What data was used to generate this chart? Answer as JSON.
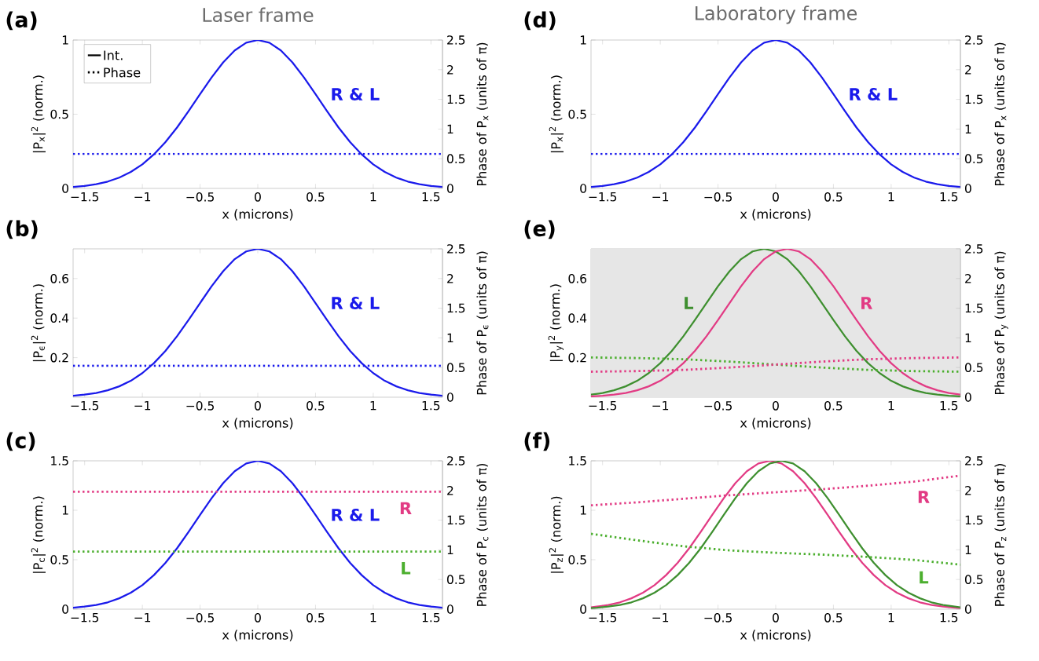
{
  "chart_data": [
    {
      "type": "line",
      "title": "(a)",
      "subtitle": "Laser frame",
      "xlabel": "x (microns)",
      "ylabel": "|P$_{x}$|$^{2}$ (norm.)",
      "y2label": "Phase of P$_{x}$ (units of π)",
      "x": [
        -1.6,
        -1.5,
        -1.4,
        -1.3,
        -1.2,
        -1.1,
        -1.0,
        -0.9,
        -0.8,
        -0.7,
        -0.6,
        -0.5,
        -0.4,
        -0.3,
        -0.2,
        -0.1,
        0,
        0.1,
        0.2,
        0.3,
        0.4,
        0.5,
        0.6,
        0.7,
        0.8,
        0.9,
        1.0,
        1.1,
        1.2,
        1.3,
        1.4,
        1.5,
        1.6
      ],
      "xlim": [
        -1.6,
        1.6
      ],
      "xticks": [
        -1.5,
        -1,
        -0.5,
        0,
        0.5,
        1,
        1.5
      ],
      "ylim": [
        0,
        1
      ],
      "yticks": [
        0,
        0.5,
        1
      ],
      "y2lim": [
        0,
        2.5
      ],
      "y2ticks": [
        0,
        0.5,
        1,
        1.5,
        2,
        2.5
      ],
      "annotations": [
        "Int.",
        "Phase"
      ],
      "series": [
        {
          "name": "R & L",
          "color": "#1a1aeb",
          "line_style": "solid",
          "values": [
            0.01,
            0.017,
            0.028,
            0.046,
            0.073,
            0.111,
            0.162,
            0.229,
            0.312,
            0.41,
            0.52,
            0.635,
            0.748,
            0.849,
            0.93,
            0.982,
            1,
            0.982,
            0.93,
            0.849,
            0.748,
            0.635,
            0.52,
            0.41,
            0.312,
            0.229,
            0.162,
            0.111,
            0.073,
            0.046,
            0.028,
            0.017,
            0.01
          ]
        },
        {
          "color": "#1a1aeb",
          "line_style": "dotted",
          "axis": "y2",
          "x": [
            -1.6,
            1.6
          ],
          "values": [
            0.58,
            0.58
          ]
        }
      ]
    },
    {
      "type": "line",
      "title": "(b)",
      "xlabel": "x (microns)",
      "ylabel": "|P$_{ϵ}$|$^{2}$ (norm.)",
      "y2label": "Phase of P$_{ϵ}$ (units of π)",
      "x": [
        -1.6,
        -1.5,
        -1.4,
        -1.3,
        -1.2,
        -1.1,
        -1.0,
        -0.9,
        -0.8,
        -0.7,
        -0.6,
        -0.5,
        -0.4,
        -0.3,
        -0.2,
        -0.1,
        0,
        0.1,
        0.2,
        0.3,
        0.4,
        0.5,
        0.6,
        0.7,
        0.8,
        0.9,
        1.0,
        1.1,
        1.2,
        1.3,
        1.4,
        1.5,
        1.6
      ],
      "xlim": [
        -1.6,
        1.6
      ],
      "xticks": [
        -1.5,
        -1,
        -0.5,
        0,
        0.5,
        1,
        1.5
      ],
      "ylim": [
        0,
        0.75
      ],
      "yticks": [
        0.2,
        0.4,
        0.6
      ],
      "y2lim": [
        0,
        2.5
      ],
      "y2ticks": [
        0,
        0.5,
        1,
        1.5,
        2,
        2.5
      ],
      "series": [
        {
          "name": "R & L",
          "color": "#1a1aeb",
          "line_style": "solid",
          "values": [
            0.007,
            0.013,
            0.021,
            0.035,
            0.055,
            0.083,
            0.122,
            0.172,
            0.234,
            0.308,
            0.39,
            0.476,
            0.561,
            0.637,
            0.698,
            0.737,
            0.75,
            0.737,
            0.698,
            0.637,
            0.561,
            0.476,
            0.39,
            0.308,
            0.234,
            0.172,
            0.122,
            0.083,
            0.055,
            0.035,
            0.021,
            0.013,
            0.007
          ]
        },
        {
          "color": "#1a1aeb",
          "line_style": "dotted",
          "axis": "y2",
          "x": [
            -1.6,
            1.6
          ],
          "values": [
            0.53,
            0.53
          ]
        }
      ]
    },
    {
      "type": "line",
      "title": "(c)",
      "xlabel": "x (microns)",
      "ylabel": "|P$_{c}$|$^{2}$ (norm.)",
      "y2label": "Phase of P$_{c}$ (units of π)",
      "x": [
        -1.6,
        -1.5,
        -1.4,
        -1.3,
        -1.2,
        -1.1,
        -1.0,
        -0.9,
        -0.8,
        -0.7,
        -0.6,
        -0.5,
        -0.4,
        -0.3,
        -0.2,
        -0.1,
        0,
        0.1,
        0.2,
        0.3,
        0.4,
        0.5,
        0.6,
        0.7,
        0.8,
        0.9,
        1.0,
        1.1,
        1.2,
        1.3,
        1.4,
        1.5,
        1.6
      ],
      "xlim": [
        -1.6,
        1.6
      ],
      "xticks": [
        -1.5,
        -1,
        -0.5,
        0,
        0.5,
        1,
        1.5
      ],
      "ylim": [
        0,
        1.5
      ],
      "yticks": [
        0,
        0.5,
        1,
        1.5
      ],
      "y2lim": [
        0,
        2.5
      ],
      "y2ticks": [
        0,
        0.5,
        1,
        1.5,
        2,
        2.5
      ],
      "series": [
        {
          "name": "R & L",
          "color": "#1a1aeb",
          "line_style": "solid",
          "values": [
            0.014,
            0.026,
            0.042,
            0.069,
            0.11,
            0.167,
            0.243,
            0.344,
            0.468,
            0.615,
            0.78,
            0.953,
            1.122,
            1.274,
            1.395,
            1.473,
            1.5,
            1.473,
            1.395,
            1.274,
            1.122,
            0.953,
            0.78,
            0.615,
            0.468,
            0.344,
            0.243,
            0.167,
            0.11,
            0.069,
            0.042,
            0.026,
            0.014
          ]
        },
        {
          "name": "R",
          "color": "#e23b84",
          "line_style": "dotted",
          "axis": "y2",
          "x": [
            -1.6,
            1.6
          ],
          "values": [
            1.98,
            1.98
          ]
        },
        {
          "name": "L",
          "color": "#4caf2f",
          "line_style": "dotted",
          "axis": "y2",
          "x": [
            -1.6,
            1.6
          ],
          "values": [
            0.97,
            0.97
          ]
        }
      ]
    },
    {
      "type": "line",
      "title": "(d)",
      "subtitle": "Laboratory frame",
      "xlabel": "x (microns)",
      "ylabel": "|P$_{x}$|$^{2}$ (norm.)",
      "y2label": "Phase of P$_{x}$ (units of π)",
      "x": [
        -1.6,
        -1.5,
        -1.4,
        -1.3,
        -1.2,
        -1.1,
        -1.0,
        -0.9,
        -0.8,
        -0.7,
        -0.6,
        -0.5,
        -0.4,
        -0.3,
        -0.2,
        -0.1,
        0,
        0.1,
        0.2,
        0.3,
        0.4,
        0.5,
        0.6,
        0.7,
        0.8,
        0.9,
        1.0,
        1.1,
        1.2,
        1.3,
        1.4,
        1.5,
        1.6
      ],
      "xlim": [
        -1.6,
        1.6
      ],
      "xticks": [
        -1.5,
        -1,
        -0.5,
        0,
        0.5,
        1,
        1.5
      ],
      "ylim": [
        0,
        1
      ],
      "yticks": [
        0,
        0.5,
        1
      ],
      "y2lim": [
        0,
        2.5
      ],
      "y2ticks": [
        0,
        0.5,
        1,
        1.5,
        2,
        2.5
      ],
      "series": [
        {
          "name": "R & L",
          "color": "#1a1aeb",
          "line_style": "solid",
          "values": [
            0.01,
            0.017,
            0.028,
            0.046,
            0.073,
            0.111,
            0.162,
            0.229,
            0.312,
            0.41,
            0.52,
            0.635,
            0.748,
            0.849,
            0.93,
            0.982,
            1,
            0.982,
            0.93,
            0.849,
            0.748,
            0.635,
            0.52,
            0.41,
            0.312,
            0.229,
            0.162,
            0.111,
            0.073,
            0.046,
            0.028,
            0.017,
            0.01
          ]
        },
        {
          "color": "#1a1aeb",
          "line_style": "dotted",
          "axis": "y2",
          "x": [
            -1.6,
            1.6
          ],
          "values": [
            0.58,
            0.58
          ]
        }
      ]
    },
    {
      "type": "line",
      "title": "(e)",
      "xlabel": "x (microns)",
      "ylabel": "|P$_{y}$|$^{2}$ (norm.)",
      "y2label": "Phase of P$_{y}$ (units of π)",
      "x": [
        -1.6,
        -1.5,
        -1.4,
        -1.3,
        -1.2,
        -1.1,
        -1.0,
        -0.9,
        -0.8,
        -0.7,
        -0.6,
        -0.5,
        -0.4,
        -0.3,
        -0.2,
        -0.1,
        0,
        0.1,
        0.2,
        0.3,
        0.4,
        0.5,
        0.6,
        0.7,
        0.8,
        0.9,
        1.0,
        1.1,
        1.2,
        1.3,
        1.4,
        1.5,
        1.6
      ],
      "xlim": [
        -1.6,
        1.6
      ],
      "xticks": [
        -1.5,
        -1,
        -0.5,
        0,
        0.5,
        1,
        1.5
      ],
      "ylim": [
        0,
        0.75
      ],
      "yticks": [
        0.2,
        0.4,
        0.6
      ],
      "y2lim": [
        0,
        2.5
      ],
      "y2ticks": [
        0,
        0.5,
        1,
        1.5,
        2,
        2.5
      ],
      "bands": [
        {
          "axis": "x",
          "from": -1.6,
          "to": 1.6,
          "color": "#e6e6e6"
        }
      ],
      "series": [
        {
          "name": "L",
          "color": "#3e8f2f",
          "line_style": "solid",
          "values": [
            0.013,
            0.021,
            0.035,
            0.055,
            0.083,
            0.122,
            0.172,
            0.234,
            0.308,
            0.39,
            0.476,
            0.561,
            0.637,
            0.698,
            0.737,
            0.75,
            0.737,
            0.698,
            0.637,
            0.561,
            0.476,
            0.39,
            0.308,
            0.234,
            0.172,
            0.122,
            0.083,
            0.055,
            0.035,
            0.021,
            0.013,
            0.007,
            0.004
          ]
        },
        {
          "name": "R",
          "color": "#e23b84",
          "line_style": "solid",
          "values": [
            0.004,
            0.007,
            0.013,
            0.021,
            0.035,
            0.055,
            0.083,
            0.122,
            0.172,
            0.234,
            0.308,
            0.39,
            0.476,
            0.561,
            0.637,
            0.698,
            0.737,
            0.75,
            0.737,
            0.698,
            0.637,
            0.561,
            0.476,
            0.39,
            0.308,
            0.234,
            0.172,
            0.122,
            0.083,
            0.055,
            0.035,
            0.021,
            0.013
          ]
        },
        {
          "color": "#4caf2f",
          "line_style": "dotted",
          "axis": "y2",
          "x": [
            -1.6,
            -1.2,
            -0.8,
            -0.4,
            0,
            0.4,
            0.8,
            1.2,
            1.6
          ],
          "values": [
            0.67,
            0.66,
            0.64,
            0.6,
            0.55,
            0.5,
            0.46,
            0.44,
            0.43
          ]
        },
        {
          "color": "#e23b84",
          "line_style": "dotted",
          "axis": "y2",
          "x": [
            -1.6,
            -1.2,
            -0.8,
            -0.4,
            0,
            0.4,
            0.8,
            1.2,
            1.6
          ],
          "values": [
            0.43,
            0.44,
            0.46,
            0.5,
            0.55,
            0.6,
            0.64,
            0.66,
            0.67
          ]
        }
      ]
    },
    {
      "type": "line",
      "title": "(f)",
      "xlabel": "x (microns)",
      "ylabel": "|P$_{z}$|$^{2}$ (norm.)",
      "y2label": "Phase of P$_{z}$ (units of π)",
      "xlim": [
        -1.6,
        1.6
      ],
      "xticks": [
        -1.5,
        -1,
        -0.5,
        0,
        0.5,
        1,
        1.5
      ],
      "ylim": [
        0,
        1.5
      ],
      "yticks": [
        0,
        0.5,
        1,
        1.5
      ],
      "y2lim": [
        0,
        2.5
      ],
      "y2ticks": [
        0,
        0.5,
        1,
        1.5,
        2,
        2.5
      ],
      "series": [
        {
          "color": "#e23b84",
          "line_style": "solid",
          "x": [
            -1.6,
            -1.55,
            -1.45,
            -1.35,
            -1.25,
            -1.15,
            -1.05,
            -0.95,
            -0.85,
            -0.75,
            -0.65,
            -0.55,
            -0.45,
            -0.35,
            -0.25,
            -0.15,
            -0.05,
            0.05,
            0.15,
            0.25,
            0.35,
            0.45,
            0.55,
            0.65,
            0.75,
            0.85,
            0.95,
            1.05,
            1.15,
            1.25,
            1.35,
            1.45,
            1.55,
            1.6
          ],
          "values": [
            0.019,
            0.026,
            0.042,
            0.069,
            0.11,
            0.167,
            0.243,
            0.344,
            0.468,
            0.615,
            0.78,
            0.953,
            1.122,
            1.274,
            1.395,
            1.473,
            1.5,
            1.473,
            1.395,
            1.274,
            1.122,
            0.953,
            0.78,
            0.615,
            0.468,
            0.344,
            0.243,
            0.167,
            0.11,
            0.069,
            0.042,
            0.026,
            0.014,
            0.011
          ]
        },
        {
          "color": "#3e8f2f",
          "line_style": "solid",
          "x": [
            -1.6,
            -1.55,
            -1.45,
            -1.35,
            -1.25,
            -1.15,
            -1.05,
            -0.95,
            -0.85,
            -0.75,
            -0.65,
            -0.55,
            -0.45,
            -0.35,
            -0.25,
            -0.15,
            -0.05,
            0.05,
            0.15,
            0.25,
            0.35,
            0.45,
            0.55,
            0.65,
            0.75,
            0.85,
            0.95,
            1.05,
            1.15,
            1.25,
            1.35,
            1.45,
            1.55,
            1.6
          ],
          "values": [
            0.011,
            0.014,
            0.026,
            0.042,
            0.069,
            0.11,
            0.167,
            0.243,
            0.344,
            0.468,
            0.615,
            0.78,
            0.953,
            1.122,
            1.274,
            1.395,
            1.473,
            1.5,
            1.473,
            1.395,
            1.274,
            1.122,
            0.953,
            0.78,
            0.615,
            0.468,
            0.344,
            0.243,
            0.167,
            0.11,
            0.069,
            0.042,
            0.026,
            0.019
          ]
        },
        {
          "name": "R",
          "color": "#e23b84",
          "line_style": "dotted",
          "axis": "y2",
          "x": [
            -1.6,
            -1.2,
            -0.8,
            -0.4,
            0,
            0.4,
            0.8,
            1.2,
            1.6
          ],
          "values": [
            1.75,
            1.8,
            1.86,
            1.92,
            1.97,
            2.02,
            2.08,
            2.15,
            2.25
          ]
        },
        {
          "name": "L",
          "color": "#4caf2f",
          "line_style": "dotted",
          "axis": "y2",
          "x": [
            -1.6,
            -1.2,
            -0.8,
            -0.4,
            0,
            0.4,
            0.8,
            1.2,
            1.6
          ],
          "values": [
            1.27,
            1.16,
            1.06,
            0.99,
            0.95,
            0.92,
            0.88,
            0.83,
            0.75
          ]
        }
      ]
    }
  ]
}
